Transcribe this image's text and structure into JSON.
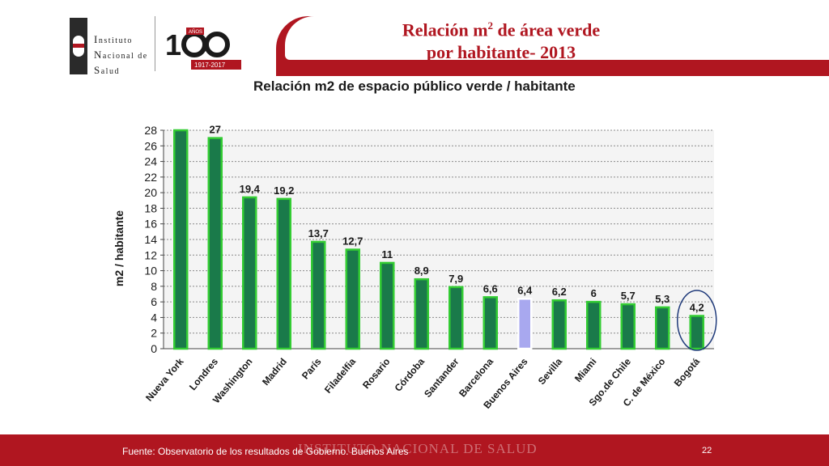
{
  "header": {
    "logo_lines": [
      "Instituto",
      "Nacional de",
      "Salud"
    ],
    "anniversary_years": "1917-2017",
    "anniversary_badge": "AÑOS"
  },
  "slide_title": {
    "line1_before": "Relación m",
    "line1_superscript": "2",
    "line1_after": " de área verde",
    "line2": "por habitante- 2013"
  },
  "footer": {
    "watermark": "INSTITUTO NACIONAL DE SALUD",
    "source": "Fuente: Observatorio de los resultados de Gobierno. Buenos Aires",
    "page_number": "22"
  },
  "colors": {
    "brand_red": "#b01620",
    "bar_fill": "#1a7a4a",
    "bar_border": "#33cc33",
    "highlight_bar": "#a8a8ef",
    "circle_stroke": "#1f3a7a"
  },
  "chart_data": {
    "type": "bar",
    "title": "Relación m2 de espacio público verde / habitante",
    "xlabel": "",
    "ylabel": "m2 / habitante",
    "ylim": [
      0,
      28
    ],
    "yticks": [
      0,
      2,
      4,
      6,
      8,
      10,
      12,
      14,
      16,
      18,
      20,
      22,
      24,
      26,
      28
    ],
    "grid": true,
    "categories": [
      "Nueva York",
      "Londres",
      "Washington",
      "Madrid",
      "París",
      "Filadelfia",
      "Rosario",
      "Córdoba",
      "Santander",
      "Barcelona",
      "Buenos Aires",
      "Sevilla",
      "Miami",
      "Sgo.de Chile",
      "C. de México",
      "Bogotá"
    ],
    "values": [
      29,
      27,
      19.4,
      19.2,
      13.7,
      12.7,
      11,
      8.9,
      7.9,
      6.6,
      6.4,
      6.2,
      6,
      5.7,
      5.3,
      4.2
    ],
    "data_labels": [
      "",
      "27",
      "19,4",
      "19,2",
      "13,7",
      "12,7",
      "11",
      "8,9",
      "7,9",
      "6,6",
      "6,4",
      "6,2",
      "6",
      "5,7",
      "5,3",
      "4,2"
    ],
    "highlighted_category": "Buenos Aires",
    "circled_category": "Bogotá"
  }
}
